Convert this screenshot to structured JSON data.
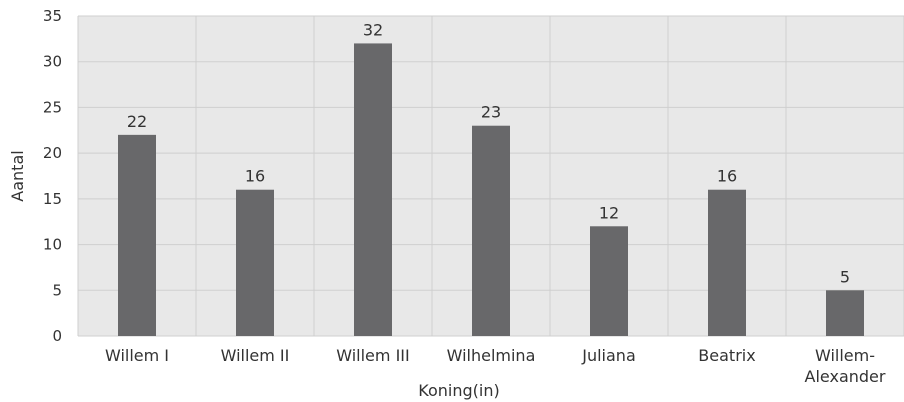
{
  "chart_data": {
    "type": "bar",
    "categories": [
      "Willem I",
      "Willem II",
      "Willem III",
      "Wilhelmina",
      "Juliana",
      "Beatrix",
      "Willem-Alexander"
    ],
    "category_lines": [
      [
        "Willem I"
      ],
      [
        "Willem II"
      ],
      [
        "Willem III"
      ],
      [
        "Wilhelmina"
      ],
      [
        "Juliana"
      ],
      [
        "Beatrix"
      ],
      [
        "Willem-",
        "Alexander"
      ]
    ],
    "values": [
      22,
      16,
      32,
      23,
      12,
      16,
      5
    ],
    "xlabel": "Koning(in)",
    "ylabel": "Aantal",
    "ylim": [
      0,
      35
    ],
    "yticks": [
      0,
      5,
      10,
      15,
      20,
      25,
      30,
      35
    ],
    "grid": true,
    "colors": {
      "bar": "#68686a",
      "plot_bg": "#e8e8e8",
      "grid": "#cfcfcf"
    }
  }
}
